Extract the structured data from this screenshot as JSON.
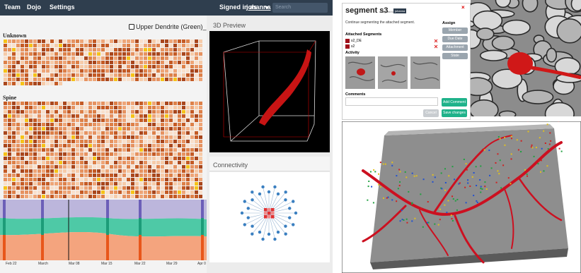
{
  "nav": {
    "links": [
      "Team",
      "Dojo",
      "Settings"
    ],
    "signed_in": "Signed in as",
    "user": "johanna",
    "search": "Search"
  },
  "panel": {
    "title": "Upper Dendrite (Green)_DE",
    "groups": [
      "Unknown",
      "Spine"
    ],
    "timeline": [
      "Feb 22",
      "March",
      "Mar 08",
      "Mar 15",
      "Mar 22",
      "Mar 29",
      "Apr 0"
    ]
  },
  "preview": {
    "title": "3D Preview"
  },
  "connectivity": {
    "title": "Connectivity"
  },
  "dialog": {
    "title": "segment s3",
    "assigned_label": "assigned to",
    "assignee": "johanna",
    "close": "×",
    "description": "Continue segmenting the attached segment.",
    "assign": {
      "title": "Assign",
      "buttons": [
        "Member",
        "Due Date",
        "Attachment",
        "State"
      ]
    },
    "segments_title": "Attached Segments",
    "segments": [
      "s2_DE",
      "s2"
    ],
    "activity": "Activity",
    "comments": "Comments",
    "add_comment": "Add Comment",
    "cancel": "Cancel",
    "save": "Save changes"
  }
}
